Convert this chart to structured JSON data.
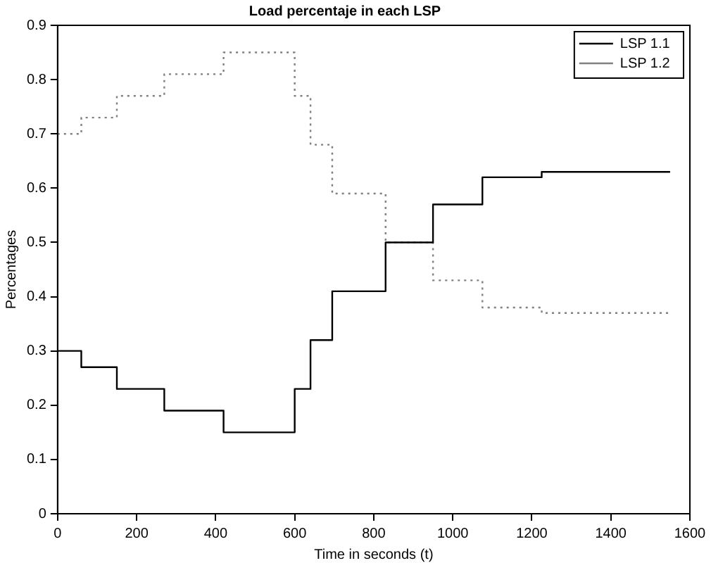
{
  "chart_data": {
    "type": "step",
    "title": "Load percentaje in each LSP",
    "xlabel": "Time in seconds (t)",
    "ylabel": "Percentages",
    "x": [
      0,
      60,
      150,
      270,
      420,
      600,
      640,
      695,
      830,
      950,
      1075,
      1225,
      1550
    ],
    "series": [
      {
        "name": "LSP 1.1",
        "color": "#000000",
        "line_style": "solid",
        "values": [
          0.3,
          0.27,
          0.23,
          0.19,
          0.15,
          0.23,
          0.32,
          0.41,
          0.5,
          0.57,
          0.62,
          0.63,
          0.63
        ]
      },
      {
        "name": "LSP 1.2",
        "color": "#808080",
        "line_style": "dotted",
        "values": [
          0.7,
          0.73,
          0.77,
          0.81,
          0.85,
          0.77,
          0.68,
          0.59,
          0.5,
          0.43,
          0.38,
          0.37,
          0.37
        ]
      }
    ],
    "xlim": [
      0,
      1600
    ],
    "xticks": [
      0,
      200,
      400,
      600,
      800,
      1000,
      1200,
      1400,
      1600
    ],
    "ylim": [
      0,
      0.9
    ],
    "yticks": [
      0,
      0.1,
      0.2,
      0.3,
      0.4,
      0.5,
      0.6,
      0.7,
      0.8,
      0.9
    ],
    "grid": false,
    "legend": "top right",
    "marker": "none"
  }
}
